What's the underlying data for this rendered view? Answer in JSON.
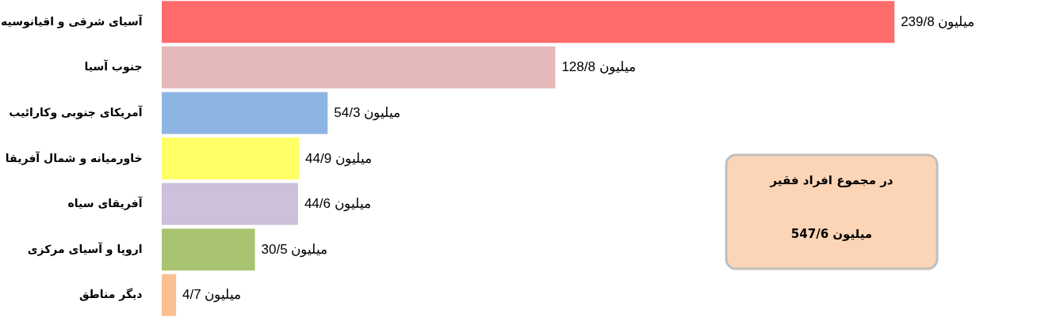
{
  "chart_data": {
    "type": "bar",
    "orientation": "horizontal",
    "categories": [
      "آسیای شرقی و اقیانوسیه",
      "جنوب آسیا",
      "آمریکای جنوبی وکارائیب",
      "خاورمیانه و شمال آفریقا",
      "آفریقای سیاه",
      "اروپا و آسیای مرکزی",
      "دیگر مناطق"
    ],
    "values": [
      239.8,
      128.8,
      54.3,
      44.9,
      44.6,
      30.5,
      4.7
    ],
    "colors": [
      "#ff6b6b",
      "#e4b8b8",
      "#8eb4e3",
      "#ffff66",
      "#ccc0da",
      "#a9c470",
      "#fac08f"
    ],
    "value_labels": [
      "239/8 میلیون",
      "128/8 میلیون",
      "54/3 میلیون",
      "44/9 میلیون",
      "44/6 میلیون",
      "30/5 میلیون",
      "4/7 میلیون"
    ],
    "annotations": [
      "در مجموع افراد فقیر",
      "547/6 میلیون"
    ],
    "grid": false
  }
}
